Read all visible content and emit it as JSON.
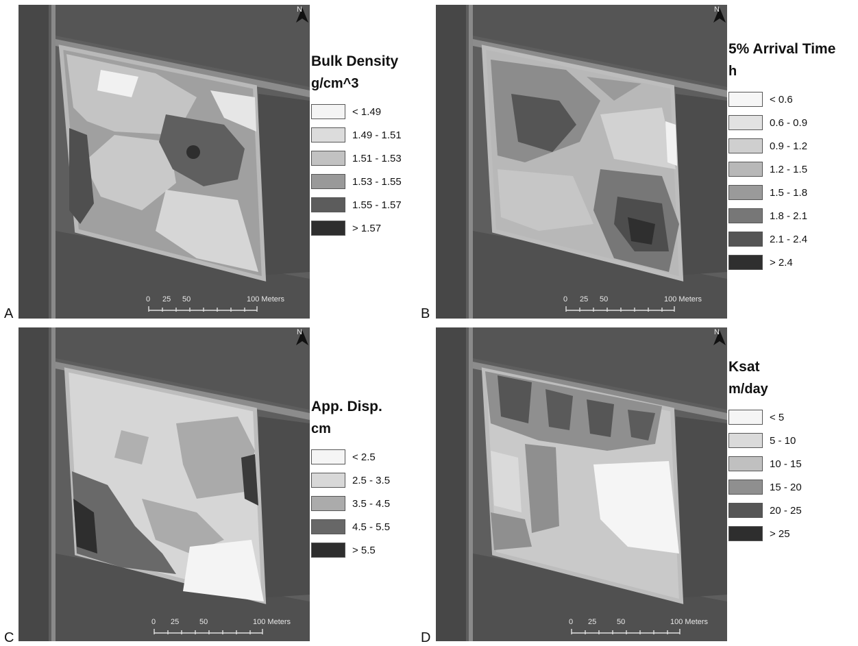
{
  "panels": [
    {
      "letter": "A",
      "north": "N",
      "legend_title": "Bulk Density",
      "legend_unit": "g/cm^3",
      "legend": [
        {
          "label": "< 1.49",
          "color": "#f4f4f4"
        },
        {
          "label": "1.49 - 1.51",
          "color": "#dcdcdc"
        },
        {
          "label": "1.51 - 1.53",
          "color": "#c2c2c2"
        },
        {
          "label": "1.53 - 1.55",
          "color": "#999999"
        },
        {
          "label": "1.55 - 1.57",
          "color": "#5c5c5c"
        },
        {
          "label": "> 1.57",
          "color": "#2e2e2e"
        }
      ],
      "scale_labels": [
        "0",
        "25",
        "50",
        "100 Meters"
      ]
    },
    {
      "letter": "B",
      "north": "N",
      "legend_title": "5% Arrival Time",
      "legend_unit": "h",
      "legend": [
        {
          "label": "< 0.6",
          "color": "#f6f6f6"
        },
        {
          "label": "0.6 - 0.9",
          "color": "#e2e2e2"
        },
        {
          "label": "0.9 - 1.2",
          "color": "#cfcfcf"
        },
        {
          "label": "1.2 - 1.5",
          "color": "#b8b8b8"
        },
        {
          "label": "1.5 - 1.8",
          "color": "#9a9a9a"
        },
        {
          "label": "1.8 - 2.1",
          "color": "#777777"
        },
        {
          "label": "2.1 - 2.4",
          "color": "#555555"
        },
        {
          "label": "> 2.4",
          "color": "#2f2f2f"
        }
      ],
      "scale_labels": [
        "0",
        "25",
        "50",
        "100 Meters"
      ]
    },
    {
      "letter": "C",
      "north": "N",
      "legend_title": "App. Disp.",
      "legend_unit": "cm",
      "legend": [
        {
          "label": "< 2.5",
          "color": "#f5f5f5"
        },
        {
          "label": "2.5 - 3.5",
          "color": "#d8d8d8"
        },
        {
          "label": "3.5 - 4.5",
          "color": "#ababab"
        },
        {
          "label": "4.5 - 5.5",
          "color": "#676767"
        },
        {
          "label": "> 5.5",
          "color": "#2e2e2e"
        }
      ],
      "scale_labels": [
        "0",
        "25",
        "50",
        "100 Meters"
      ]
    },
    {
      "letter": "D",
      "north": "N",
      "legend_title": "Ksat",
      "legend_unit": "m/day",
      "legend": [
        {
          "label": "< 5",
          "color": "#f5f5f5"
        },
        {
          "label": "5 - 10",
          "color": "#dadada"
        },
        {
          "label": "10 - 15",
          "color": "#c0c0c0"
        },
        {
          "label": "15 - 20",
          "color": "#8f8f8f"
        },
        {
          "label": "20 - 25",
          "color": "#565656"
        },
        {
          "label": "> 25",
          "color": "#2e2e2e"
        }
      ],
      "scale_labels": [
        "0",
        "25",
        "50",
        "100 Meters"
      ]
    }
  ]
}
